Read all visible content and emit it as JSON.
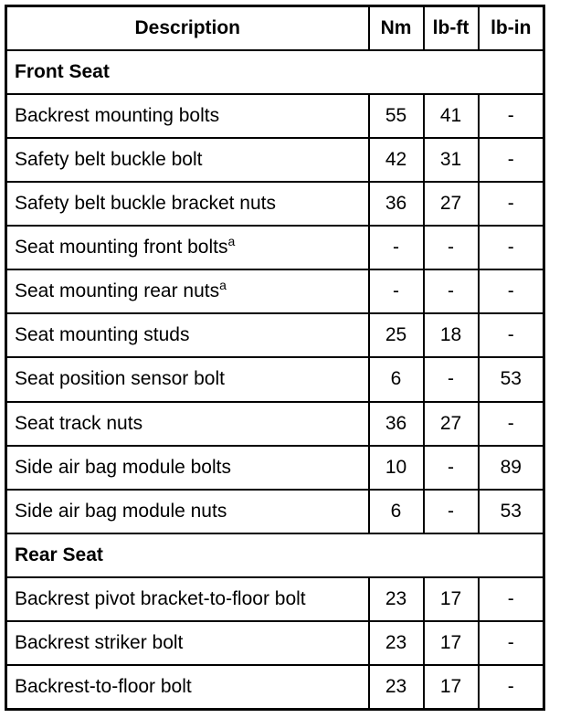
{
  "headers": [
    "Description",
    "Nm",
    "lb-ft",
    "lb-in"
  ],
  "rows": [
    {
      "section": "Front Seat"
    },
    {
      "desc": "Backrest mounting bolts",
      "nm": "55",
      "lbft": "41",
      "lbin": "-"
    },
    {
      "desc": "Safety belt buckle bolt",
      "nm": "42",
      "lbft": "31",
      "lbin": "-"
    },
    {
      "desc": "Safety belt buckle bracket nuts",
      "nm": "36",
      "lbft": "27",
      "lbin": "-"
    },
    {
      "desc": "Seat mounting front bolts",
      "sup": "a",
      "nm": "-",
      "lbft": "-",
      "lbin": "-"
    },
    {
      "desc": "Seat mounting rear nuts",
      "sup": "a",
      "nm": "-",
      "lbft": "-",
      "lbin": "-"
    },
    {
      "desc": "Seat mounting studs",
      "nm": "25",
      "lbft": "18",
      "lbin": "-"
    },
    {
      "desc": "Seat position sensor bolt",
      "nm": "6",
      "lbft": "-",
      "lbin": "53"
    },
    {
      "desc": "Seat track nuts",
      "nm": "36",
      "lbft": "27",
      "lbin": "-"
    },
    {
      "desc": "Side air bag module bolts",
      "nm": "10",
      "lbft": "-",
      "lbin": "89"
    },
    {
      "desc": "Side air bag module nuts",
      "nm": "6",
      "lbft": "-",
      "lbin": "53"
    },
    {
      "section": "Rear Seat"
    },
    {
      "desc": "Backrest pivot bracket-to-floor bolt",
      "nm": "23",
      "lbft": "17",
      "lbin": "-"
    },
    {
      "desc": "Backrest striker bolt",
      "nm": "23",
      "lbft": "17",
      "lbin": "-"
    },
    {
      "desc": "Backrest-to-floor bolt",
      "nm": "23",
      "lbft": "17",
      "lbin": "-"
    }
  ]
}
